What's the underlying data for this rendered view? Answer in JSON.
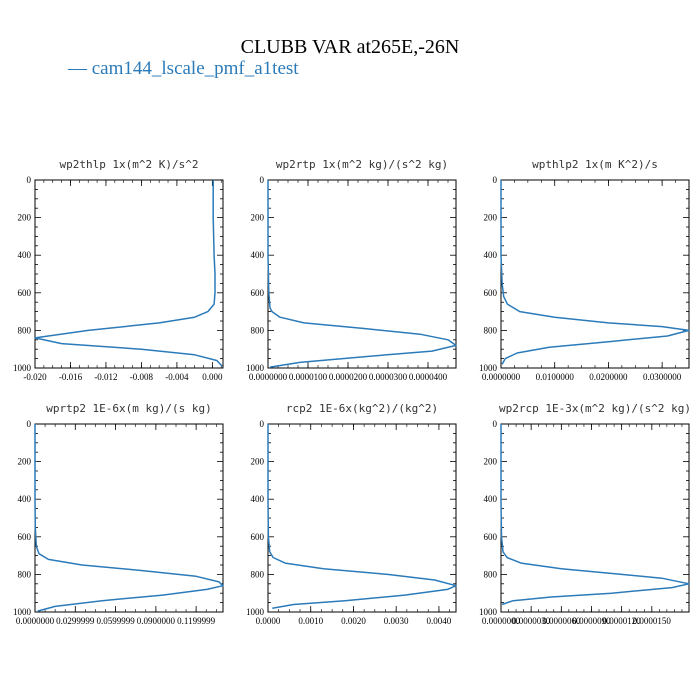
{
  "figure": {
    "title": "CLUBB VAR at265E,-26N",
    "legend": [
      {
        "label": "cam144_lscale_pmf_a1test",
        "color": "#2b7bba"
      }
    ]
  },
  "chart_data": [
    {
      "type": "line",
      "title": "wp2thlp  1x(m^2 K)/s^2",
      "xlim": [
        -0.02,
        0.0012
      ],
      "ylim": [
        1000,
        0
      ],
      "xticks": [
        "-0.020",
        "-0.016",
        "-0.012",
        "-0.008",
        "-0.004",
        "0.000"
      ],
      "xtick_values": [
        -0.02,
        -0.016,
        -0.012,
        -0.008,
        -0.004,
        0.0
      ],
      "yticks": [
        0,
        200,
        400,
        600,
        800,
        1000
      ],
      "series": [
        {
          "color": "#2b7bba",
          "x": [
            0.0001,
            0.0001,
            0.0002,
            0.0003,
            0.0003,
            0.0002,
            -0.0005,
            -0.002,
            -0.006,
            -0.014,
            -0.02,
            -0.017,
            -0.008,
            -0.002,
            0.0005,
            0.0011
          ],
          "y": [
            0,
            200,
            400,
            500,
            600,
            660,
            700,
            730,
            760,
            800,
            840,
            870,
            900,
            930,
            960,
            990
          ]
        }
      ]
    },
    {
      "type": "line",
      "title": "wp2rtp  1x(m^2 kg)/(s^2 kg)",
      "xlim": [
        0,
        4.7e-05
      ],
      "ylim": [
        1000,
        0
      ],
      "xticks": [
        "0.0000000",
        "0.0000100",
        "0.0000200",
        "0.0000300",
        "0.0000400"
      ],
      "xtick_values": [
        0,
        1e-05,
        2e-05,
        3e-05,
        4e-05
      ],
      "yticks": [
        0,
        200,
        400,
        600,
        800,
        1000
      ],
      "series": [
        {
          "color": "#2b7bba",
          "x": [
            0,
            0,
            2e-07,
            5e-07,
            1e-06,
            3e-06,
            9e-06,
            2.4e-05,
            3.8e-05,
            4.5e-05,
            4.7e-05,
            4.1e-05,
            2.4e-05,
            8e-06,
            5e-07
          ],
          "y": [
            0,
            400,
            600,
            680,
            700,
            730,
            760,
            790,
            820,
            850,
            880,
            910,
            940,
            970,
            995
          ]
        }
      ]
    },
    {
      "type": "line",
      "title": "wpthlp2  1x(m K^2)/s",
      "xlim": [
        0,
        0.035
      ],
      "ylim": [
        1000,
        0
      ],
      "xticks": [
        "0.0000000",
        "0.0100000",
        "0.0200000",
        "0.0300000"
      ],
      "xtick_values": [
        0,
        0.01,
        0.02,
        0.03
      ],
      "yticks": [
        0,
        200,
        400,
        600,
        800,
        1000
      ],
      "series": [
        {
          "color": "#2b7bba",
          "x": [
            0,
            0,
            0.0002,
            0.0005,
            0.0012,
            0.0035,
            0.01,
            0.02,
            0.03,
            0.035,
            0.031,
            0.02,
            0.009,
            0.003,
            0.0008,
            0.0002
          ],
          "y": [
            0,
            400,
            550,
            620,
            660,
            700,
            730,
            760,
            780,
            800,
            830,
            860,
            890,
            920,
            950,
            980
          ]
        }
      ]
    },
    {
      "type": "line",
      "title": "wprtp2  1E-6x(m kg)/(s kg)",
      "xlim": [
        0,
        0.14
      ],
      "ylim": [
        1000,
        0
      ],
      "xticks": [
        "0.0000000",
        "0.0299999",
        "0.0599999",
        "0.0900000",
        "0.1199999"
      ],
      "xtick_values": [
        0,
        0.0299999,
        0.0599999,
        0.09,
        0.1199999
      ],
      "yticks": [
        0,
        200,
        400,
        600,
        800,
        1000
      ],
      "series": [
        {
          "color": "#2b7bba",
          "x": [
            0,
            0,
            0.0002,
            0.001,
            0.003,
            0.01,
            0.035,
            0.08,
            0.12,
            0.137,
            0.14,
            0.128,
            0.095,
            0.05,
            0.015,
            0.002
          ],
          "y": [
            0,
            400,
            550,
            650,
            690,
            720,
            750,
            780,
            810,
            840,
            860,
            880,
            910,
            940,
            970,
            995
          ]
        }
      ]
    },
    {
      "type": "line",
      "title": "rcp2  1E-6x(kg^2)/(kg^2)",
      "xlim": [
        0,
        0.0044
      ],
      "ylim": [
        1000,
        0
      ],
      "xticks": [
        "0.0000",
        "0.0010",
        "0.0020",
        "0.0030",
        "0.0040"
      ],
      "xtick_values": [
        0,
        0.001,
        0.002,
        0.003,
        0.004
      ],
      "yticks": [
        0,
        200,
        400,
        600,
        800,
        1000
      ],
      "series": [
        {
          "color": "#2b7bba",
          "x": [
            0,
            0,
            1e-05,
            4e-05,
            0.00012,
            0.0004,
            0.0013,
            0.0028,
            0.0039,
            0.0044,
            0.0042,
            0.0032,
            0.0018,
            0.0006,
            0.0001
          ],
          "y": [
            0,
            400,
            600,
            680,
            710,
            740,
            770,
            800,
            830,
            860,
            880,
            910,
            940,
            960,
            980
          ]
        }
      ]
    },
    {
      "type": "line",
      "title": "wp2rcp  1E-3x(m^2 kg)/(s^2 kg)",
      "xlim": [
        0,
        1.87e-05
      ],
      "ylim": [
        1000,
        0
      ],
      "xticks": [
        "0.0000000",
        "0.0000030",
        "0.0000060",
        "0.0000090",
        "0.0000120",
        "0.0000150"
      ],
      "xtick_values": [
        0,
        3e-06,
        6e-06,
        9e-06,
        1.2e-05,
        1.5e-05
      ],
      "yticks": [
        0,
        200,
        400,
        600,
        800,
        1000
      ],
      "series": [
        {
          "color": "#2b7bba",
          "x": [
            0,
            0,
            5e-08,
            2e-07,
            6e-07,
            2e-06,
            6e-06,
            1.2e-05,
            1.6e-05,
            1.87e-05,
            1.7e-05,
            1.1e-05,
            5e-06,
            1.2e-06,
            1e-07
          ],
          "y": [
            0,
            400,
            600,
            680,
            710,
            740,
            770,
            800,
            820,
            850,
            870,
            900,
            920,
            940,
            960
          ]
        }
      ]
    }
  ]
}
